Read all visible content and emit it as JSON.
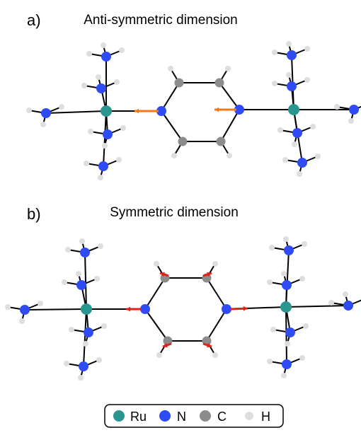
{
  "panels": [
    {
      "label": "a)",
      "title": "Anti-symmetric dimension"
    },
    {
      "label": "b)",
      "title": "Symmetric dimension"
    }
  ],
  "legend": [
    "Ru",
    "N",
    "C",
    "H"
  ]
}
